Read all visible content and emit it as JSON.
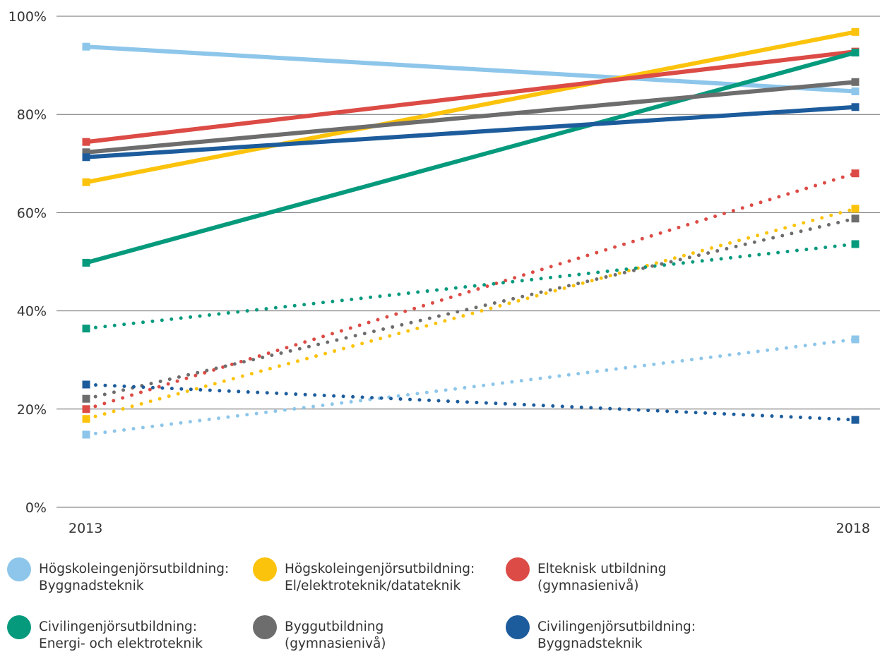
{
  "chart_data": {
    "type": "line",
    "x": [
      "2013",
      "2018"
    ],
    "ylim": [
      0,
      100
    ],
    "yticks": [
      "0%",
      "20%",
      "40%",
      "60%",
      "80%",
      "100%"
    ],
    "ytick_values": [
      0,
      20,
      40,
      60,
      80,
      100
    ],
    "grid": true,
    "legend_position": "bottom",
    "series": [
      {
        "name_lines": [
          "Högskoleingenjörsutbildning:",
          "Byggnadsteknik"
        ],
        "color": "#8dc6ea",
        "style": "solid",
        "values": [
          93.8,
          84.7
        ]
      },
      {
        "name_lines": [
          "Högskoleingenjörsutbildning:",
          "El/elektroteknik/datateknik"
        ],
        "color": "#fbc30c",
        "style": "solid",
        "values": [
          66.2,
          96.8
        ]
      },
      {
        "name_lines": [
          "Elteknisk utbildning",
          "(gymnasienivå)"
        ],
        "color": "#dc4b45",
        "style": "solid",
        "values": [
          74.4,
          92.8
        ]
      },
      {
        "name_lines": [
          "Civilingenjörsutbildning:",
          "Energi- och elektroteknik"
        ],
        "color": "#069a7d",
        "style": "solid",
        "values": [
          49.8,
          92.6
        ]
      },
      {
        "name_lines": [
          "Byggutbildning",
          "(gymnasienivå)"
        ],
        "color": "#6d6d6d",
        "style": "solid",
        "values": [
          72.3,
          86.6
        ]
      },
      {
        "name_lines": [
          "Civilingenjörsutbildning:",
          "Byggnadsteknik"
        ],
        "color": "#1d5c9c",
        "style": "solid",
        "values": [
          71.3,
          81.5
        ]
      },
      {
        "name_lines": [
          "Högskoleingenjörsutbildning:",
          "Byggnadsteknik"
        ],
        "color": "#8dc6ea",
        "style": "dotted",
        "values": [
          14.8,
          34.2
        ]
      },
      {
        "name_lines": [
          "Högskoleingenjörsutbildning:",
          "El/elektroteknik/datateknik"
        ],
        "color": "#fbc30c",
        "style": "dotted",
        "values": [
          18.0,
          60.8
        ]
      },
      {
        "name_lines": [
          "Elteknisk utbildning",
          "(gymnasienivå)"
        ],
        "color": "#dc4b45",
        "style": "dotted",
        "values": [
          20.0,
          68.0
        ]
      },
      {
        "name_lines": [
          "Civilingenjörsutbildning:",
          "Energi- och elektroteknik"
        ],
        "color": "#069a7d",
        "style": "dotted",
        "values": [
          36.4,
          53.6
        ]
      },
      {
        "name_lines": [
          "Byggutbildning",
          "(gymnasienivå)"
        ],
        "color": "#6d6d6d",
        "style": "dotted",
        "values": [
          22.1,
          58.8
        ]
      },
      {
        "name_lines": [
          "Civilingenjörsutbildning:",
          "Byggnadsteknik"
        ],
        "color": "#1d5c9c",
        "style": "dotted",
        "values": [
          25.0,
          17.8
        ]
      }
    ]
  },
  "legend": [
    {
      "line1": "Högskoleingenjörsutbildning:",
      "line2": "Byggnadsteknik",
      "color": "#8dc6ea"
    },
    {
      "line1": "Högskoleingenjörsutbildning:",
      "line2": "El/elektroteknik/datateknik",
      "color": "#fbc30c"
    },
    {
      "line1": "Elteknisk utbildning",
      "line2": "(gymnasienivå)",
      "color": "#dc4b45"
    },
    {
      "line1": "Civilingenjörsutbildning:",
      "line2": "Energi- och elektroteknik",
      "color": "#069a7d"
    },
    {
      "line1": "Byggutbildning",
      "line2": "(gymnasienivå)",
      "color": "#6d6d6d"
    },
    {
      "line1": "Civilingenjörsutbildning:",
      "line2": "Byggnadsteknik",
      "color": "#1d5c9c"
    }
  ]
}
